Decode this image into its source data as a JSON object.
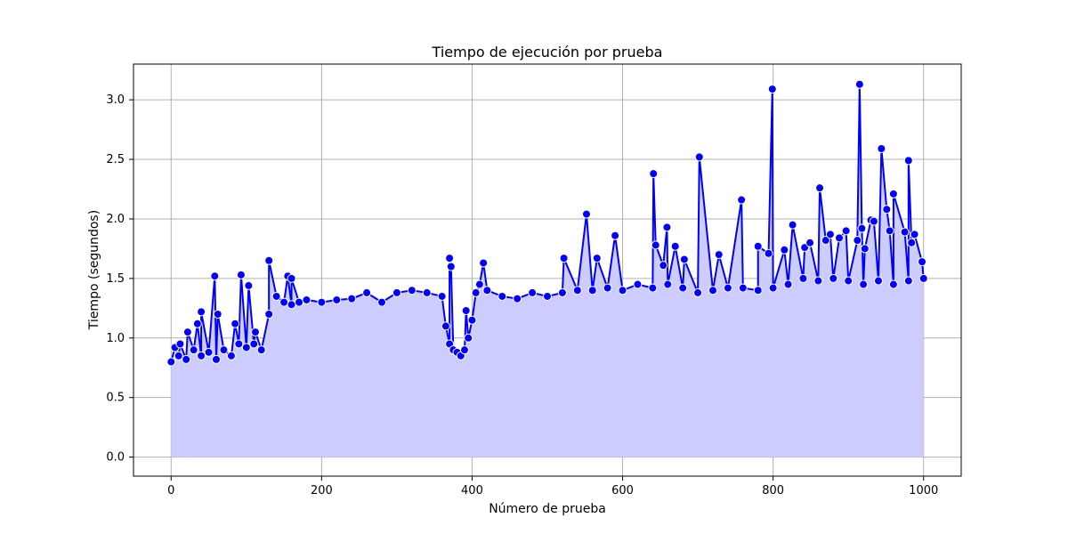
{
  "chart_data": {
    "type": "line",
    "title": "Tiempo de ejecución por prueba",
    "xlabel": "Número de prueba",
    "ylabel": "Tiempo (segundos)",
    "xlim": [
      -50,
      1050
    ],
    "ylim": [
      -0.16,
      3.3
    ],
    "xticks": [
      0,
      200,
      400,
      600,
      800,
      1000
    ],
    "yticks": [
      0.0,
      0.5,
      1.0,
      1.5,
      2.0,
      2.5,
      3.0
    ],
    "xtick_labels": [
      "0",
      "200",
      "400",
      "600",
      "800",
      "1000"
    ],
    "ytick_labels": [
      "0.0",
      "0.5",
      "1.0",
      "1.5",
      "2.0",
      "2.5",
      "3.0"
    ],
    "grid": true,
    "fill": true,
    "colors": {
      "line": "#0000ff",
      "marker": "#0000ff",
      "marker_edge": "#ffffff",
      "fill": "#ccccff",
      "grid": "#b0b0b0"
    },
    "series": [
      {
        "x": [
          0,
          10,
          20,
          30,
          40,
          50,
          60,
          70,
          80,
          90,
          100,
          110,
          120,
          130,
          140,
          150,
          160,
          170,
          180,
          200,
          220,
          240,
          260,
          280,
          300,
          320,
          340,
          360,
          365,
          370,
          375,
          380,
          385,
          390,
          395,
          400,
          405,
          410,
          420,
          440,
          460,
          480,
          500,
          520,
          540,
          560,
          580,
          600,
          620,
          640,
          660,
          680,
          700,
          720,
          740,
          760,
          780,
          800,
          820,
          840,
          860,
          880,
          900,
          920,
          940,
          960,
          980,
          1000
        ],
        "y": [
          0.8,
          0.85,
          0.82,
          0.9,
          0.85,
          0.88,
          0.82,
          0.9,
          0.85,
          0.95,
          0.92,
          0.95,
          0.9,
          1.2,
          1.35,
          1.3,
          1.28,
          1.3,
          1.32,
          1.3,
          1.32,
          1.33,
          1.38,
          1.3,
          1.38,
          1.4,
          1.38,
          1.35,
          1.1,
          0.95,
          0.9,
          0.88,
          0.85,
          0.9,
          1.0,
          1.15,
          1.38,
          1.45,
          1.4,
          1.35,
          1.33,
          1.38,
          1.35,
          1.38,
          1.4,
          1.4,
          1.42,
          1.4,
          1.45,
          1.42,
          1.45,
          1.42,
          1.38,
          1.4,
          1.42,
          1.42,
          1.4,
          1.42,
          1.45,
          1.5,
          1.48,
          1.5,
          1.48,
          1.45,
          1.48,
          1.45,
          1.48,
          1.5
        ]
      }
    ],
    "spikes": [
      {
        "x": 5,
        "y": 0.92
      },
      {
        "x": 12,
        "y": 0.95
      },
      {
        "x": 22,
        "y": 1.05
      },
      {
        "x": 35,
        "y": 1.12
      },
      {
        "x": 40,
        "y": 1.22
      },
      {
        "x": 58,
        "y": 1.52
      },
      {
        "x": 62,
        "y": 1.2
      },
      {
        "x": 85,
        "y": 1.12
      },
      {
        "x": 93,
        "y": 1.53
      },
      {
        "x": 103,
        "y": 1.44
      },
      {
        "x": 112,
        "y": 1.05
      },
      {
        "x": 130,
        "y": 1.65
      },
      {
        "x": 155,
        "y": 1.52
      },
      {
        "x": 160,
        "y": 1.5
      },
      {
        "x": 370,
        "y": 1.67
      },
      {
        "x": 372,
        "y": 1.6
      },
      {
        "x": 392,
        "y": 1.23
      },
      {
        "x": 415,
        "y": 1.63
      },
      {
        "x": 522,
        "y": 1.67
      },
      {
        "x": 552,
        "y": 2.04
      },
      {
        "x": 566,
        "y": 1.67
      },
      {
        "x": 590,
        "y": 1.86
      },
      {
        "x": 641,
        "y": 2.38
      },
      {
        "x": 644,
        "y": 1.78
      },
      {
        "x": 654,
        "y": 1.61
      },
      {
        "x": 659,
        "y": 1.93
      },
      {
        "x": 670,
        "y": 1.77
      },
      {
        "x": 682,
        "y": 1.66
      },
      {
        "x": 702,
        "y": 2.52
      },
      {
        "x": 728,
        "y": 1.7
      },
      {
        "x": 758,
        "y": 2.16
      },
      {
        "x": 780,
        "y": 1.77
      },
      {
        "x": 794,
        "y": 1.71
      },
      {
        "x": 799,
        "y": 3.09
      },
      {
        "x": 815,
        "y": 1.74
      },
      {
        "x": 826,
        "y": 1.95
      },
      {
        "x": 842,
        "y": 1.76
      },
      {
        "x": 849,
        "y": 1.8
      },
      {
        "x": 862,
        "y": 2.26
      },
      {
        "x": 870,
        "y": 1.82
      },
      {
        "x": 876,
        "y": 1.87
      },
      {
        "x": 888,
        "y": 1.84
      },
      {
        "x": 897,
        "y": 1.9
      },
      {
        "x": 912,
        "y": 1.82
      },
      {
        "x": 915,
        "y": 3.13
      },
      {
        "x": 918,
        "y": 1.92
      },
      {
        "x": 922,
        "y": 1.75
      },
      {
        "x": 930,
        "y": 1.99
      },
      {
        "x": 934,
        "y": 1.98
      },
      {
        "x": 944,
        "y": 2.59
      },
      {
        "x": 951,
        "y": 2.08
      },
      {
        "x": 955,
        "y": 1.9
      },
      {
        "x": 960,
        "y": 2.21
      },
      {
        "x": 975,
        "y": 1.89
      },
      {
        "x": 980,
        "y": 2.49
      },
      {
        "x": 984,
        "y": 1.8
      },
      {
        "x": 988,
        "y": 1.87
      },
      {
        "x": 998,
        "y": 1.64
      }
    ]
  }
}
